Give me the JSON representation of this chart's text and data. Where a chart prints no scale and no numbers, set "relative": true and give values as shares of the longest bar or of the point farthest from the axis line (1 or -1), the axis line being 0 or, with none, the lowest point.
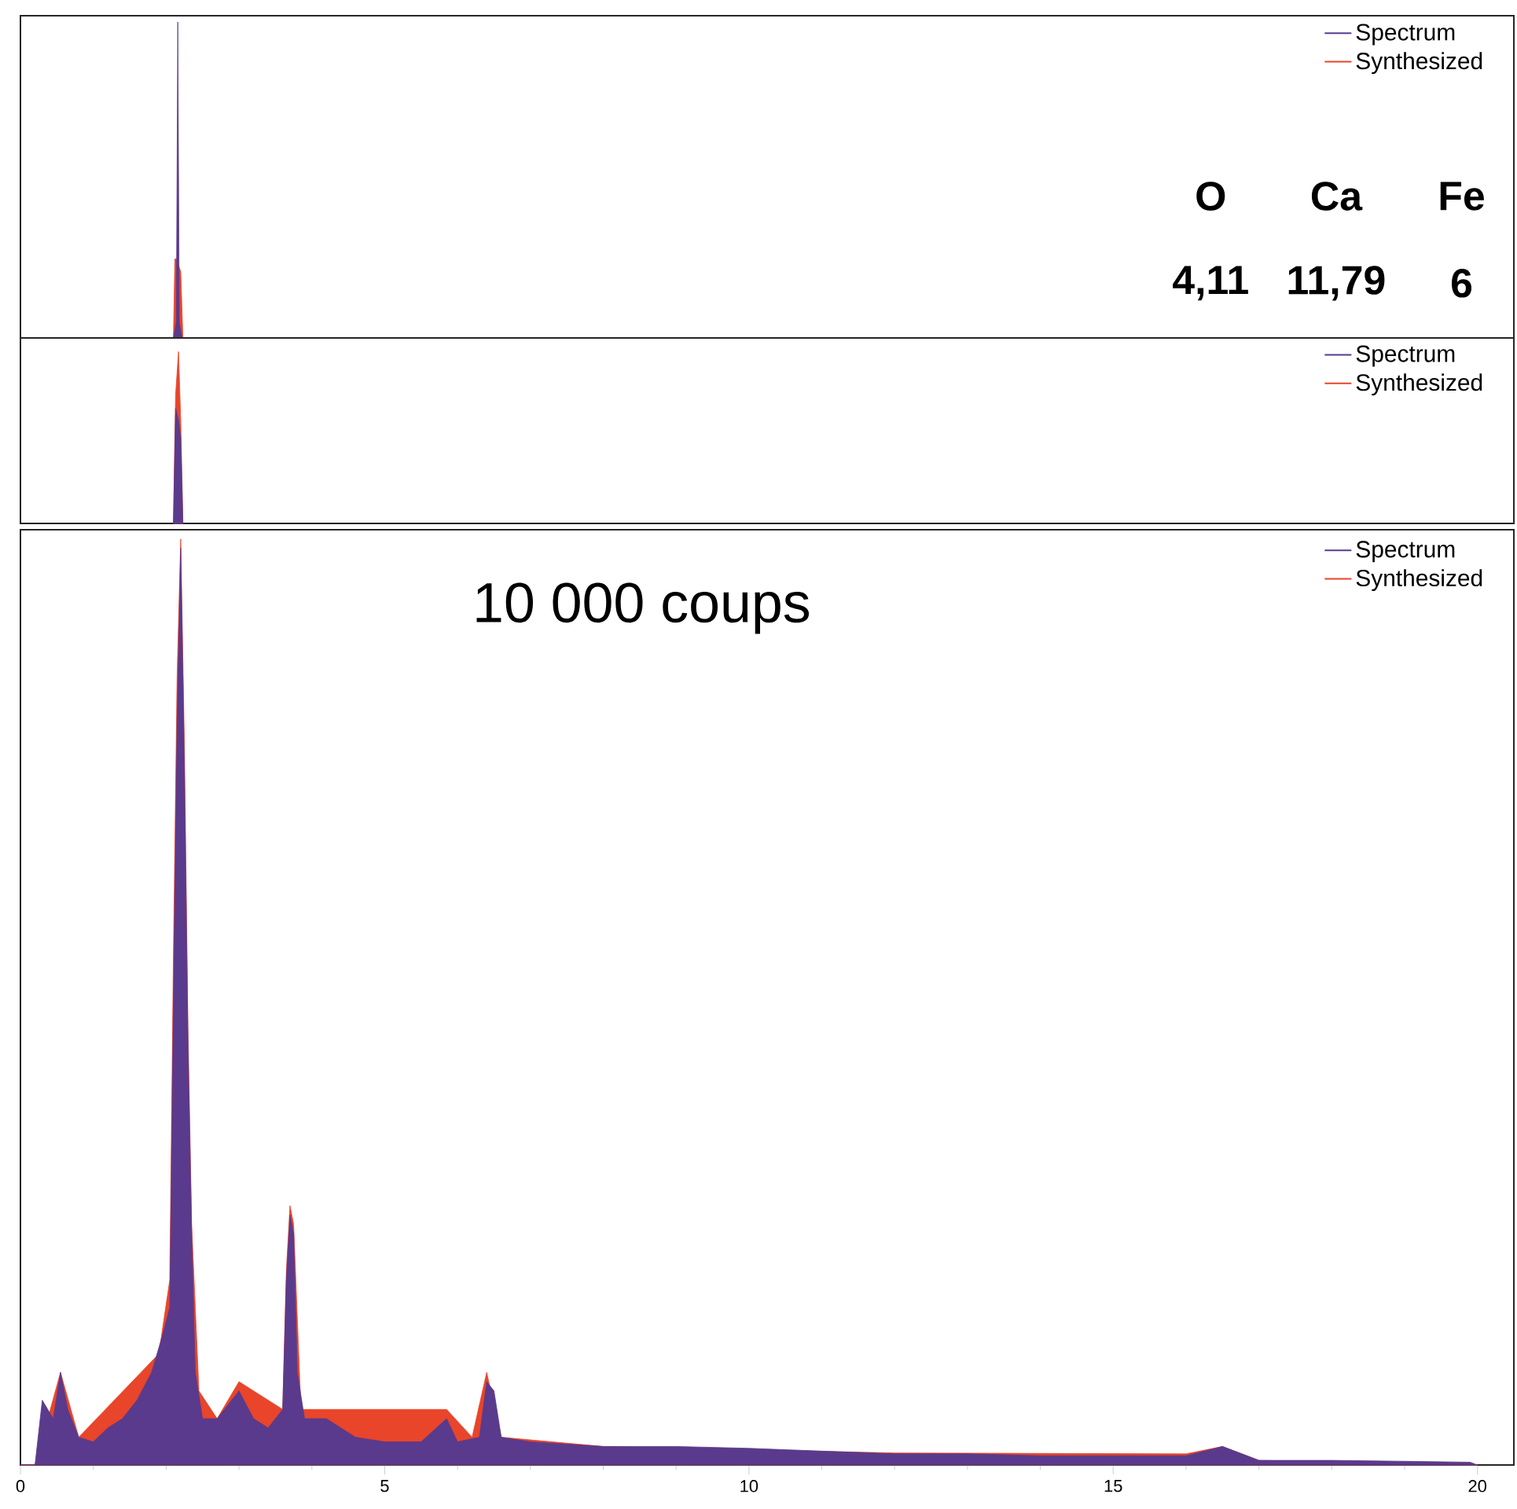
{
  "chart_data": [
    {
      "type": "area",
      "relative": true,
      "xlim": [
        0,
        20.5
      ],
      "tick_labels": false,
      "legend": "top right",
      "annotations": [
        "O",
        "Ca",
        "Fe",
        "4,11",
        "11,79",
        "6"
      ],
      "series": [
        {
          "name": "Spectrum",
          "color": "#5a3a8c",
          "x": [
            2.1,
            2.14,
            2.16,
            2.18,
            2.22
          ],
          "values": [
            0,
            0.05,
            1,
            0.05,
            0
          ]
        },
        {
          "name": "Synthesized",
          "color": "#e8452a",
          "x": [
            2.1,
            2.12,
            2.14,
            2.2,
            2.23
          ],
          "values": [
            0,
            0.25,
            0.25,
            0.21,
            0
          ]
        }
      ]
    },
    {
      "type": "area",
      "relative": true,
      "xlim": [
        0,
        20.5
      ],
      "tick_labels": false,
      "legend": "top right",
      "series": [
        {
          "name": "Spectrum",
          "color": "#5a3a8c",
          "x": [
            2.1,
            2.13,
            2.17,
            2.2,
            2.23
          ],
          "values": [
            0,
            0.67,
            0.6,
            0.5,
            0
          ]
        },
        {
          "name": "Synthesized",
          "color": "#e8452a",
          "x": [
            2.1,
            2.13,
            2.17,
            2.2,
            2.23
          ],
          "values": [
            0,
            0.75,
            1,
            0.6,
            0
          ]
        }
      ]
    },
    {
      "type": "area",
      "relative": true,
      "xlim": [
        0,
        20.5
      ],
      "xticks": [
        0,
        5,
        10,
        15,
        20
      ],
      "tick_labels": "x",
      "legend": "top right",
      "annotations": [
        "10 000 coups"
      ],
      "series": [
        {
          "name": "Spectrum",
          "color": "#5a3a8c",
          "x": [
            0,
            0.2,
            0.3,
            0.45,
            0.55,
            0.65,
            0.8,
            1.0,
            1.2,
            1.4,
            1.6,
            1.8,
            1.95,
            2.05,
            2.1,
            2.15,
            2.2,
            2.25,
            2.3,
            2.35,
            2.4,
            2.5,
            2.7,
            3.0,
            3.2,
            3.4,
            3.6,
            3.65,
            3.7,
            3.75,
            3.8,
            3.9,
            4.2,
            4.6,
            5.0,
            5.5,
            5.85,
            6.0,
            6.3,
            6.4,
            6.5,
            6.6,
            7.0,
            8.0,
            9.0,
            10,
            11,
            12,
            13,
            14,
            15,
            16,
            16.5,
            17,
            18,
            19,
            19.9,
            20
          ],
          "values": [
            0,
            0,
            0.07,
            0.05,
            0.1,
            0.06,
            0.03,
            0.025,
            0.04,
            0.05,
            0.07,
            0.1,
            0.14,
            0.17,
            0.5,
            0.8,
            0.99,
            0.75,
            0.45,
            0.25,
            0.1,
            0.05,
            0.05,
            0.08,
            0.05,
            0.04,
            0.06,
            0.2,
            0.27,
            0.25,
            0.1,
            0.05,
            0.05,
            0.03,
            0.025,
            0.025,
            0.05,
            0.025,
            0.03,
            0.09,
            0.08,
            0.03,
            0.025,
            0.02,
            0.02,
            0.018,
            0.015,
            0.012,
            0.012,
            0.01,
            0.01,
            0.01,
            0.02,
            0.005,
            0.005,
            0.004,
            0.003,
            0
          ]
        },
        {
          "name": "Synthesized",
          "color": "#e8452a",
          "x": [
            0,
            0.2,
            0.55,
            0.8,
            1.9,
            2.05,
            2.1,
            2.15,
            2.2,
            2.25,
            2.3,
            2.35,
            2.45,
            2.7,
            3.0,
            3.6,
            3.65,
            3.7,
            3.75,
            3.85,
            5.85,
            6.2,
            6.4,
            6.6,
            8,
            12,
            16,
            16.5,
            17,
            20
          ],
          "values": [
            0,
            0,
            0.1,
            0.03,
            0.12,
            0.2,
            0.55,
            0.85,
            1,
            0.78,
            0.47,
            0.26,
            0.08,
            0.05,
            0.09,
            0.06,
            0.21,
            0.28,
            0.26,
            0.06,
            0.06,
            0.03,
            0.1,
            0.03,
            0.02,
            0.013,
            0.012,
            0.02,
            0.005,
            0
          ]
        }
      ]
    }
  ]
}
